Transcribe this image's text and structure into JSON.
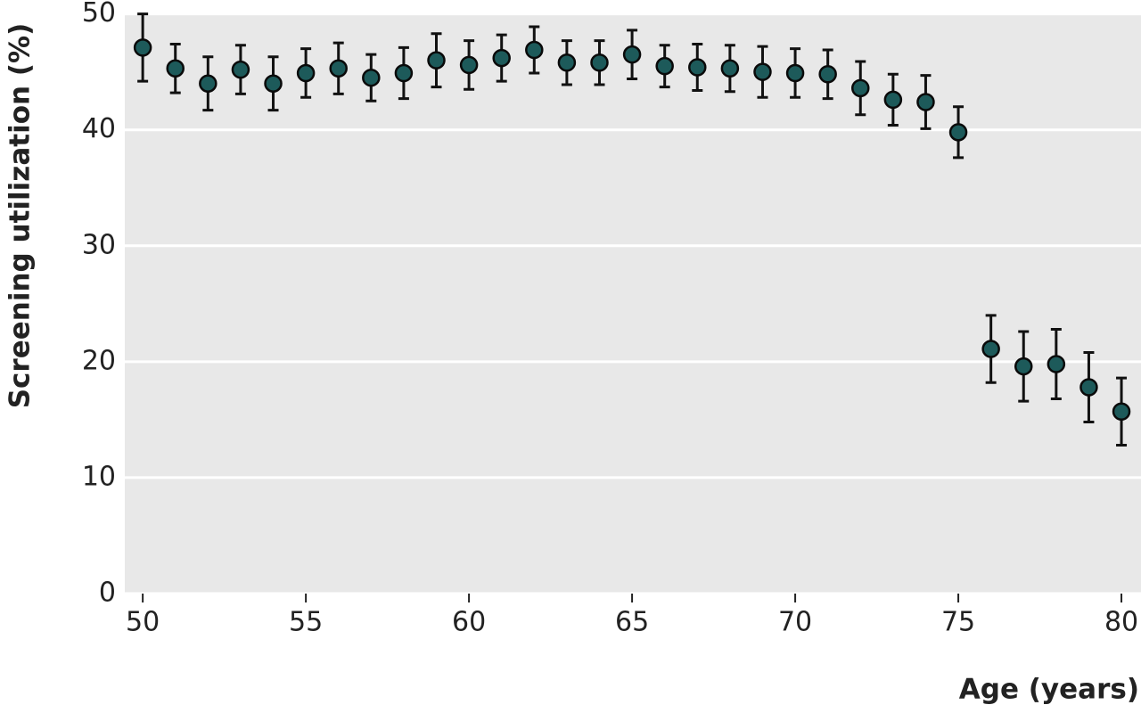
{
  "chart_data": {
    "type": "scatter",
    "x_label": "Age (years)",
    "y_label": "Screening utilization (%)",
    "x": [
      50,
      51,
      52,
      53,
      54,
      55,
      56,
      57,
      58,
      59,
      60,
      61,
      62,
      63,
      64,
      65,
      66,
      67,
      68,
      69,
      70,
      71,
      72,
      73,
      74,
      75,
      76,
      77,
      78,
      79,
      80
    ],
    "series": [
      {
        "color": "#1d5a5a",
        "values": [
          47.1,
          45.3,
          44.0,
          45.2,
          44.0,
          44.9,
          45.3,
          44.5,
          44.9,
          46.0,
          45.6,
          46.2,
          46.9,
          45.8,
          45.8,
          46.5,
          45.5,
          45.4,
          45.3,
          45.0,
          44.9,
          44.8,
          43.6,
          42.6,
          42.4,
          39.8,
          21.1,
          19.6,
          19.8,
          17.8,
          15.7
        ],
        "errors": [
          2.9,
          2.1,
          2.3,
          2.1,
          2.3,
          2.1,
          2.2,
          2.0,
          2.2,
          2.3,
          2.1,
          2.0,
          2.0,
          1.9,
          1.9,
          2.1,
          1.8,
          2.0,
          2.0,
          2.2,
          2.1,
          2.1,
          2.3,
          2.2,
          2.3,
          2.2,
          2.9,
          3.0,
          3.0,
          3.0,
          2.9
        ]
      }
    ],
    "xlim": [
      49.45,
      80.6
    ],
    "ylim": [
      0,
      50.05
    ],
    "xticks": [
      50,
      55,
      60,
      65,
      70,
      75,
      80
    ],
    "yticks": [
      0,
      10,
      20,
      30,
      40,
      50
    ],
    "grid": true,
    "background": "#e8e8e8"
  }
}
